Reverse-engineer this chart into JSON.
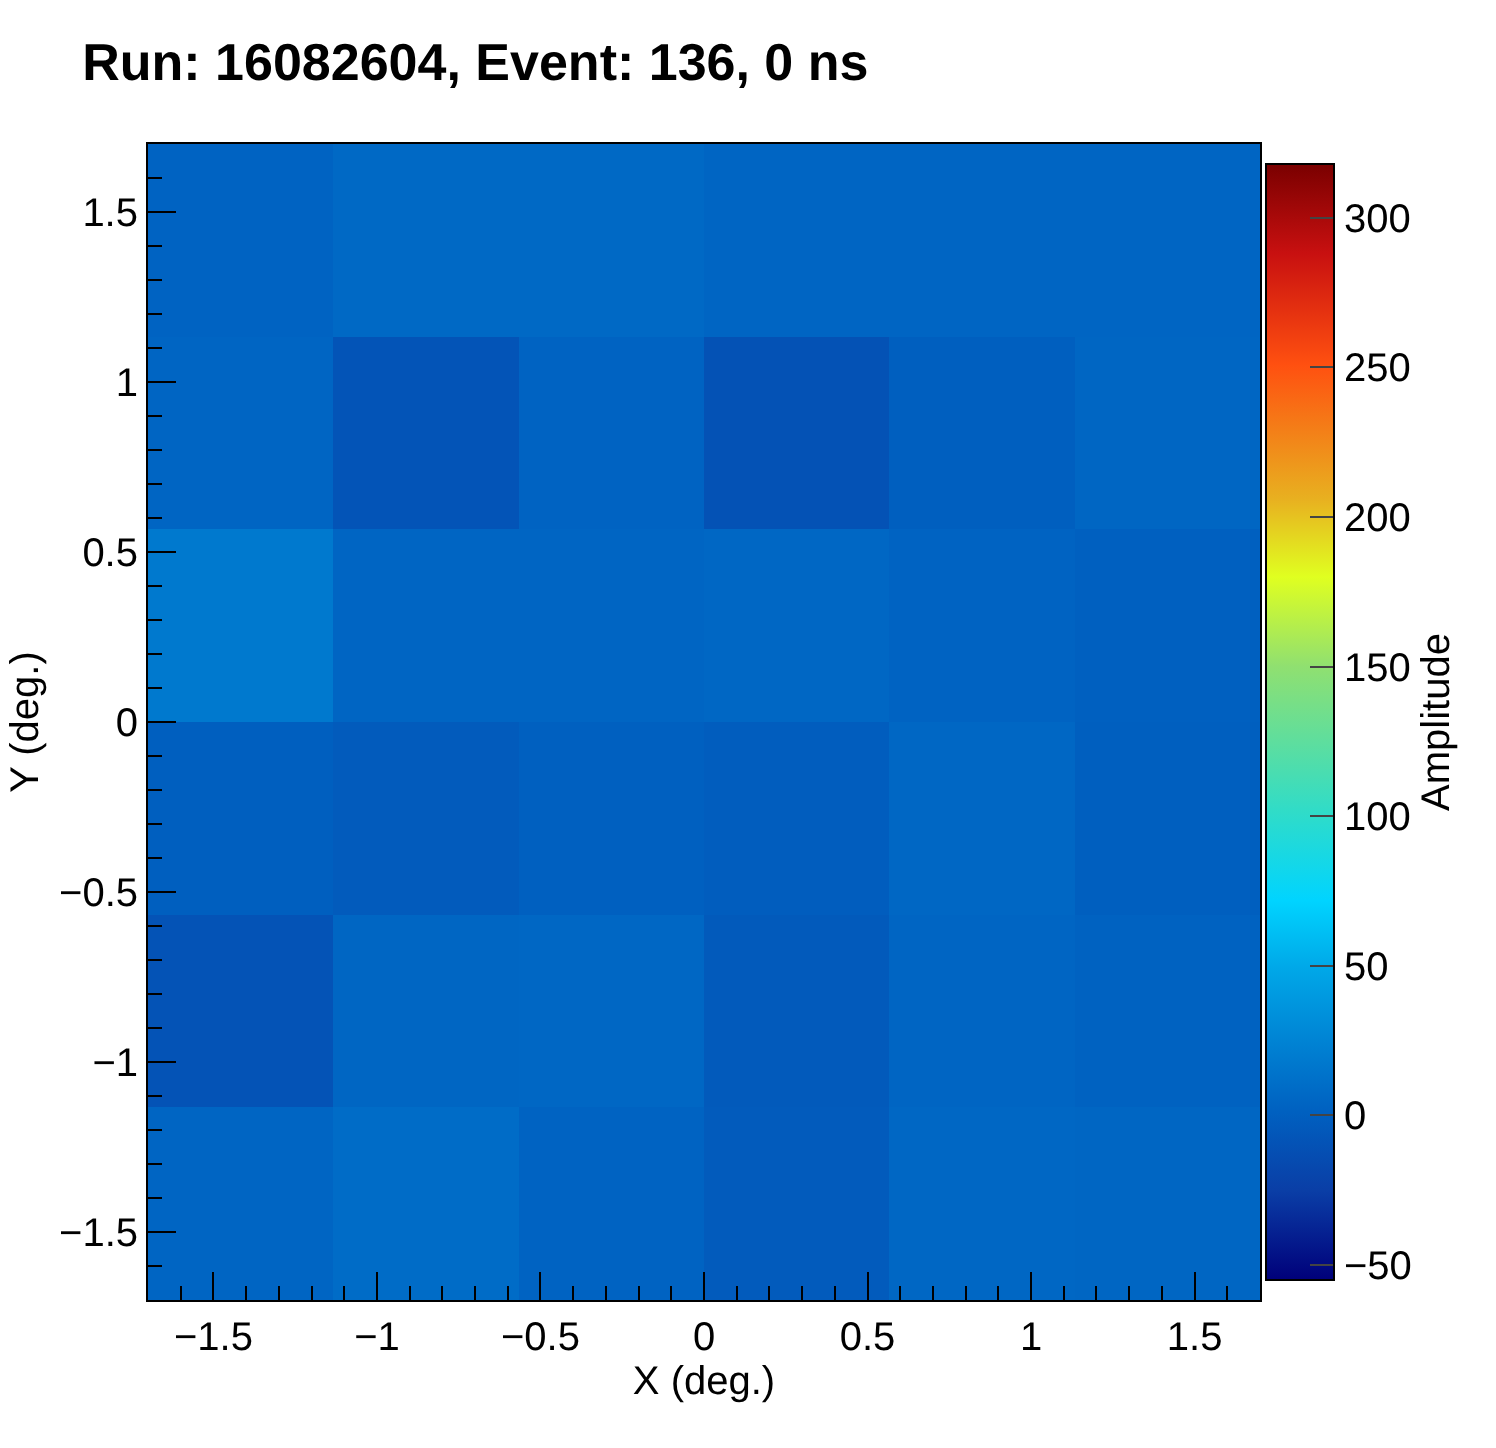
{
  "chart_data": {
    "type": "heatmap",
    "title": "Run: 16082604, Event: 136, 0 ns",
    "xlabel": "X (deg.)",
    "ylabel": "Y (deg.)",
    "clabel": "Amplitude",
    "cells": [
      [
        3,
        7,
        7,
        4,
        4,
        4
      ],
      [
        4,
        -8,
        3,
        -10,
        0,
        5
      ],
      [
        18,
        4,
        4,
        6,
        3,
        1
      ],
      [
        0,
        -3,
        1,
        -1,
        6,
        0
      ],
      [
        -9,
        5,
        6,
        -4,
        4,
        2
      ],
      [
        4,
        9,
        3,
        -3,
        6,
        5
      ]
    ],
    "xlim": [
      -1.7,
      1.7
    ],
    "ylim": [
      -1.7,
      1.7
    ],
    "xticks": [
      {
        "value": -1.5,
        "label": "−1.5"
      },
      {
        "value": -1,
        "label": "−1"
      },
      {
        "value": -0.5,
        "label": "−0.5"
      },
      0,
      0.5,
      1,
      1.5
    ],
    "yticks": [
      {
        "value": -1.5,
        "label": "−1.5"
      },
      {
        "value": -1,
        "label": "−1"
      },
      {
        "value": -0.5,
        "label": "−0.5"
      },
      0,
      0.5,
      1,
      1.5
    ],
    "clim": [
      -55,
      318
    ],
    "cticks": [
      {
        "value": -50,
        "label": "−50"
      },
      0,
      50,
      100,
      150,
      200,
      250,
      300
    ]
  }
}
